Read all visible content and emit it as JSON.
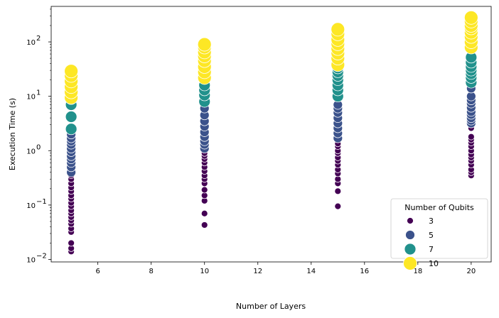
{
  "chart_data": {
    "type": "scatter",
    "xlabel": "Number of Layers",
    "ylabel": "Execution Time (s)",
    "xlim": [
      4.25,
      20.75
    ],
    "ylim": [
      0.009,
      450
    ],
    "yscale": "log",
    "grid": false,
    "x_ticks": [
      6,
      8,
      10,
      12,
      14,
      16,
      18,
      20
    ],
    "x_tick_labels": [
      "6",
      "8",
      "10",
      "12",
      "14",
      "16",
      "18",
      "20"
    ],
    "y_ticks": [
      0.01,
      0.1,
      1,
      10,
      100
    ],
    "y_tick_labels": [
      "10",
      "10",
      "10",
      "10",
      "10"
    ],
    "y_tick_exponents": [
      "−2",
      "−1",
      "0",
      "1",
      "2"
    ],
    "legend": {
      "title": "Number of Qubits",
      "placement": "lower-right",
      "entries": [
        {
          "label": "3",
          "color": "#440154"
        },
        {
          "label": "5",
          "color": "#3b528b"
        },
        {
          "label": "7",
          "color": "#21918c"
        },
        {
          "label": "10",
          "color": "#fde725"
        }
      ]
    },
    "series": [
      {
        "qubits": 3,
        "color": "#440154",
        "points": [
          [
            5,
            0.014
          ],
          [
            5,
            0.016
          ],
          [
            5,
            0.02
          ],
          [
            5,
            0.032
          ],
          [
            5,
            0.037
          ],
          [
            5,
            0.045
          ],
          [
            5,
            0.052
          ],
          [
            5,
            0.06
          ],
          [
            5,
            0.07
          ],
          [
            5,
            0.08
          ],
          [
            5,
            0.095
          ],
          [
            5,
            0.11
          ],
          [
            5,
            0.13
          ],
          [
            5,
            0.15
          ],
          [
            5,
            0.18
          ],
          [
            5,
            0.21
          ],
          [
            5,
            0.25
          ],
          [
            5,
            0.3
          ],
          [
            5,
            0.35
          ],
          [
            10,
            0.043
          ],
          [
            10,
            0.07
          ],
          [
            10,
            0.12
          ],
          [
            10,
            0.15
          ],
          [
            10,
            0.19
          ],
          [
            10,
            0.25
          ],
          [
            10,
            0.3
          ],
          [
            10,
            0.35
          ],
          [
            10,
            0.42
          ],
          [
            10,
            0.5
          ],
          [
            10,
            0.6
          ],
          [
            10,
            0.7
          ],
          [
            10,
            0.8
          ],
          [
            10,
            0.9
          ],
          [
            15,
            0.095
          ],
          [
            15,
            0.18
          ],
          [
            15,
            0.25
          ],
          [
            15,
            0.3
          ],
          [
            15,
            0.38
          ],
          [
            15,
            0.45
          ],
          [
            15,
            0.55
          ],
          [
            15,
            0.65
          ],
          [
            15,
            0.75
          ],
          [
            15,
            0.9
          ],
          [
            15,
            1.0
          ],
          [
            15,
            1.2
          ],
          [
            15,
            1.35
          ],
          [
            20,
            0.35
          ],
          [
            20,
            0.4
          ],
          [
            20,
            0.45
          ],
          [
            20,
            0.55
          ],
          [
            20,
            0.65
          ],
          [
            20,
            0.75
          ],
          [
            20,
            0.85
          ],
          [
            20,
            1.0
          ],
          [
            20,
            1.2
          ],
          [
            20,
            1.4
          ],
          [
            20,
            1.6
          ],
          [
            20,
            1.8
          ],
          [
            20,
            2.6
          ]
        ]
      },
      {
        "qubits": 5,
        "color": "#3b528b",
        "points": [
          [
            5,
            0.4
          ],
          [
            5,
            0.5
          ],
          [
            5,
            0.6
          ],
          [
            5,
            0.7
          ],
          [
            5,
            0.8
          ],
          [
            5,
            0.95
          ],
          [
            5,
            1.1
          ],
          [
            5,
            1.3
          ],
          [
            5,
            1.5
          ],
          [
            5,
            1.7
          ],
          [
            5,
            2.0
          ],
          [
            10,
            1.1
          ],
          [
            10,
            1.3
          ],
          [
            10,
            1.5
          ],
          [
            10,
            1.8
          ],
          [
            10,
            2.2
          ],
          [
            10,
            2.8
          ],
          [
            10,
            3.5
          ],
          [
            10,
            4.5
          ],
          [
            10,
            6.0
          ],
          [
            15,
            1.7
          ],
          [
            15,
            2.1
          ],
          [
            15,
            2.6
          ],
          [
            15,
            3.2
          ],
          [
            15,
            4.0
          ],
          [
            15,
            5.0
          ],
          [
            15,
            6.0
          ],
          [
            15,
            7.0
          ],
          [
            20,
            3.2
          ],
          [
            20,
            3.6
          ],
          [
            20,
            4.0
          ],
          [
            20,
            4.6
          ],
          [
            20,
            5.2
          ],
          [
            20,
            6.2
          ],
          [
            20,
            7.4
          ],
          [
            20,
            8.5
          ],
          [
            20,
            10.0
          ],
          [
            20,
            14.0
          ]
        ]
      },
      {
        "qubits": 7,
        "color": "#21918c",
        "points": [
          [
            5,
            2.5
          ],
          [
            5,
            4.2
          ],
          [
            5,
            7.0
          ],
          [
            5,
            9.0
          ],
          [
            10,
            8.0
          ],
          [
            10,
            10.5
          ],
          [
            10,
            13.0
          ],
          [
            10,
            16.0
          ],
          [
            15,
            10.0
          ],
          [
            15,
            13.0
          ],
          [
            15,
            16.0
          ],
          [
            15,
            20.0
          ],
          [
            15,
            24.0
          ],
          [
            15,
            28.0
          ],
          [
            15,
            33.0
          ],
          [
            20,
            18.0
          ],
          [
            20,
            22.0
          ],
          [
            20,
            26.0
          ],
          [
            20,
            30.0
          ],
          [
            20,
            35.0
          ],
          [
            20,
            42.0
          ],
          [
            20,
            52.0
          ]
        ]
      },
      {
        "qubits": 10,
        "color": "#fde725",
        "points": [
          [
            5,
            9.5
          ],
          [
            5,
            12.0
          ],
          [
            5,
            15.0
          ],
          [
            5,
            19.0
          ],
          [
            5,
            24.0
          ],
          [
            5,
            29.0
          ],
          [
            10,
            22.0
          ],
          [
            10,
            28.0
          ],
          [
            10,
            35.0
          ],
          [
            10,
            45.0
          ],
          [
            10,
            55.0
          ],
          [
            10,
            65.0
          ],
          [
            10,
            80.0
          ],
          [
            10,
            90.0
          ],
          [
            15,
            38.0
          ],
          [
            15,
            50.0
          ],
          [
            15,
            62.0
          ],
          [
            15,
            75.0
          ],
          [
            15,
            92.0
          ],
          [
            15,
            110.0
          ],
          [
            15,
            140.0
          ],
          [
            15,
            170.0
          ],
          [
            20,
            80.0
          ],
          [
            20,
            100.0
          ],
          [
            20,
            125.0
          ],
          [
            20,
            150.0
          ],
          [
            20,
            180.0
          ],
          [
            20,
            200.0
          ],
          [
            20,
            240.0
          ],
          [
            20,
            280.0
          ]
        ]
      }
    ]
  }
}
